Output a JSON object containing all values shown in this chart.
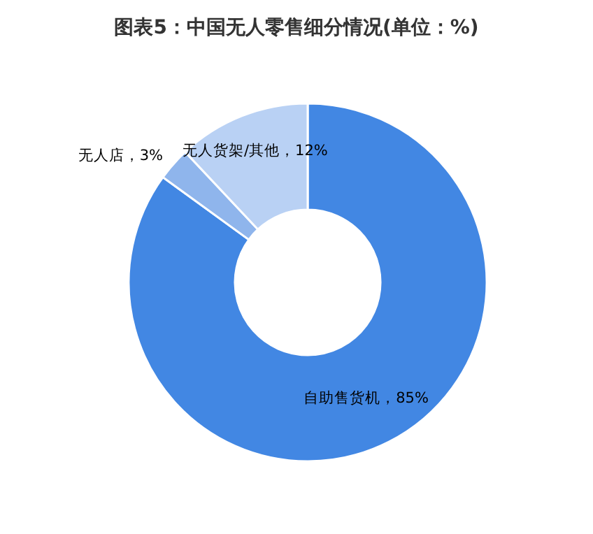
{
  "chart_data": {
    "type": "donut",
    "title": "图表5：中国无人零售细分情况(单位：%)",
    "categories": [
      "自助售货机",
      "无人店",
      "无人货架/其他"
    ],
    "values": [
      85,
      3,
      12
    ],
    "value_labels": [
      "85%",
      "3%",
      "12%"
    ],
    "colors": [
      "#4287e3",
      "#8fb5ec",
      "#b9d1f4"
    ]
  }
}
